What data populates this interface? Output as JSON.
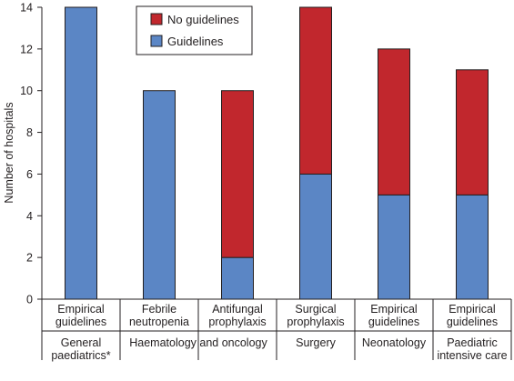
{
  "chart_data": {
    "type": "bar",
    "stacked": true,
    "ylabel": "Number of hospitals",
    "ylim": [
      0,
      14
    ],
    "yticks": [
      0,
      2,
      4,
      6,
      8,
      10,
      12,
      14
    ],
    "grid": false,
    "legend_position": "top-center",
    "categories": [
      [
        "Empirical",
        "guidelines"
      ],
      [
        "Febrile",
        "neutropenia"
      ],
      [
        "Antifungal",
        "prophylaxis"
      ],
      [
        "Surgical",
        "prophylaxis"
      ],
      [
        "Empirical",
        "guidelines"
      ],
      [
        "Empirical",
        "guidelines"
      ]
    ],
    "groups": [
      {
        "label": [
          "General",
          "paediatrics*"
        ],
        "span": [
          0,
          0
        ]
      },
      {
        "label": [
          "Haematology and oncology"
        ],
        "span": [
          1,
          2
        ]
      },
      {
        "label": [
          "Surgery"
        ],
        "span": [
          3,
          3
        ]
      },
      {
        "label": [
          "Neonatology"
        ],
        "span": [
          4,
          4
        ]
      },
      {
        "label": [
          "Paediatric",
          "intensive care"
        ],
        "span": [
          5,
          5
        ]
      }
    ],
    "series": [
      {
        "name": "Guidelines",
        "color": "#5b86c5",
        "values": [
          14,
          10,
          2,
          6,
          5,
          5
        ]
      },
      {
        "name": "No guidelines",
        "color": "#c1272d",
        "values": [
          0,
          0,
          8,
          8,
          7,
          6
        ]
      }
    ],
    "legend_order": [
      "No guidelines",
      "Guidelines"
    ]
  }
}
